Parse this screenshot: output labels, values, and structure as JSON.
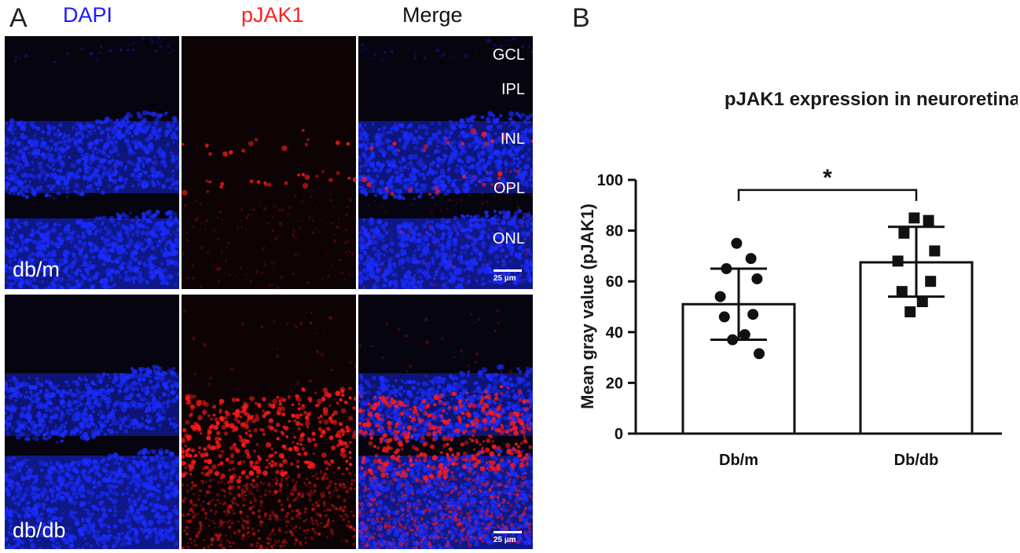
{
  "panel_a": {
    "letter": "A",
    "column_headers": [
      {
        "label": "DAPI",
        "color": "#1a1aff"
      },
      {
        "label": "pJAK1",
        "color": "#ff2020"
      },
      {
        "label": "Merge",
        "color": "#111111"
      }
    ],
    "row_labels": [
      "db/m",
      "db/db"
    ],
    "layer_labels": [
      "GCL",
      "IPL",
      "INL",
      "OPL",
      "ONL"
    ],
    "scale_bar_label": "25 µm",
    "colors": {
      "dapi": "#1a2cff",
      "pjak1": "#ff1a1a",
      "background": "#05040f"
    }
  },
  "panel_b": {
    "letter": "B"
  },
  "chart_data": {
    "type": "bar",
    "title": "pJAK1 expression in neuroretina",
    "xlabel": "",
    "ylabel": "Mean  gray  value (pJAK1)",
    "categories": [
      "Db/m",
      "Db/db"
    ],
    "values": [
      51,
      67.5
    ],
    "error_sd": [
      [
        37,
        65
      ],
      [
        54,
        81.5
      ]
    ],
    "points": [
      {
        "category": "Db/m",
        "marker": "circle",
        "values": [
          75,
          69,
          65,
          61,
          54,
          47,
          46,
          39,
          37,
          31.5
        ]
      },
      {
        "category": "Db/db",
        "marker": "square",
        "values": [
          85,
          84,
          79,
          72,
          68,
          60,
          56,
          52,
          48
        ]
      }
    ],
    "ylim": [
      0,
      100
    ],
    "yticks": [
      0,
      20,
      40,
      60,
      80,
      100
    ],
    "significance": {
      "between": [
        "Db/m",
        "Db/db"
      ],
      "label": "*"
    },
    "grid": false,
    "legend": "none"
  }
}
